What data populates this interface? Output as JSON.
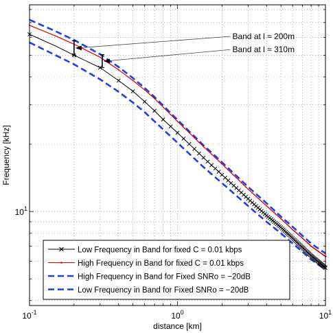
{
  "chart_data": {
    "type": "line",
    "xlabel": "distance [km]",
    "ylabel": "Frequency [kHz]",
    "x_scale": "log",
    "y_scale": "log",
    "xlim": [
      0.1,
      10
    ],
    "ylim": [
      3.8,
      84
    ],
    "grid": true,
    "legend_position": "bottom-left",
    "x_ticks": [
      {
        "value": 0.1,
        "base": "10",
        "exp": "-1"
      },
      {
        "value": 1,
        "base": "10",
        "exp": "0"
      },
      {
        "value": 10,
        "base": "10",
        "exp": "1"
      }
    ],
    "y_ticks": [
      {
        "value": 10,
        "base": "10",
        "exp": "1"
      }
    ],
    "series": [
      {
        "name": "Low Frequency in Band for fixed C = 0.01 kbps",
        "color": "#000000",
        "style": "solid",
        "marker": "x",
        "x": [
          0.1,
          0.15,
          0.2,
          0.3,
          0.4,
          0.5,
          0.6,
          0.7,
          0.8,
          1.0,
          1.5,
          2.0,
          3.0,
          4.0,
          5.0,
          6.0,
          7.0,
          8.0,
          10.0
        ],
        "y": [
          62,
          55,
          50,
          44,
          38.5,
          34.5,
          31,
          28.2,
          25.8,
          22.5,
          17.4,
          14.6,
          11.4,
          9.6,
          8.5,
          7.6,
          6.9,
          6.35,
          5.6
        ]
      },
      {
        "name": "High Frequency in Band for fixed C = 0.01 kbps",
        "color": "#e00000",
        "style": "solid",
        "marker": "dot",
        "x": [
          0.1,
          0.15,
          0.2,
          0.3,
          0.4,
          0.5,
          0.6,
          0.7,
          0.8,
          1.0,
          1.5,
          2.0,
          3.0,
          4.0,
          5.0,
          6.0,
          7.0,
          8.0,
          10.0
        ],
        "y": [
          68,
          61,
          56,
          49,
          43,
          38.5,
          35,
          32,
          29.3,
          25.3,
          19.5,
          16.3,
          12.6,
          10.6,
          9.3,
          8.3,
          7.6,
          7.0,
          6.3
        ]
      },
      {
        "name": "High Frequency in Band for Fixed SNRo = −20dB",
        "color": "#1f3fe6",
        "style": "dashed",
        "marker": "none",
        "x": [
          0.1,
          0.15,
          0.2,
          0.3,
          0.4,
          0.5,
          0.6,
          0.7,
          0.8,
          1.0,
          1.5,
          2.0,
          3.0,
          4.0,
          5.0,
          6.0,
          7.0,
          8.0,
          10.0
        ],
        "y": [
          72,
          64,
          58.5,
          50.5,
          44.3,
          39.5,
          35.7,
          32.5,
          29.8,
          25.7,
          19.8,
          16.6,
          12.9,
          10.9,
          9.5,
          8.55,
          7.8,
          7.2,
          6.5
        ]
      },
      {
        "name": "Low Frequency in Band for Fixed SNRo = −20dB",
        "color": "#1f3fe6",
        "style": "dashed",
        "marker": "none",
        "x": [
          0.1,
          0.15,
          0.2,
          0.3,
          0.4,
          0.5,
          0.6,
          0.7,
          0.8,
          1.0,
          1.5,
          2.0,
          3.0,
          4.0,
          5.0,
          6.0,
          7.0,
          8.0,
          10.0
        ],
        "y": [
          57,
          50,
          45.5,
          39,
          34.3,
          30.7,
          27.8,
          25.3,
          23.3,
          20.3,
          15.8,
          13.4,
          10.6,
          9.0,
          8.0,
          7.2,
          6.6,
          6.1,
          5.5
        ]
      }
    ],
    "annotations": [
      {
        "text": "Band at l ≈ 200m",
        "x": 0.2,
        "y_top": 58,
        "y_bottom": 50,
        "label_x": 2.35,
        "label_y": 59
      },
      {
        "text": "Band at l ≈ 310m",
        "x": 0.31,
        "y_top": 50.3,
        "y_bottom": 44,
        "label_x": 2.35,
        "label_y": 51.5
      }
    ]
  }
}
